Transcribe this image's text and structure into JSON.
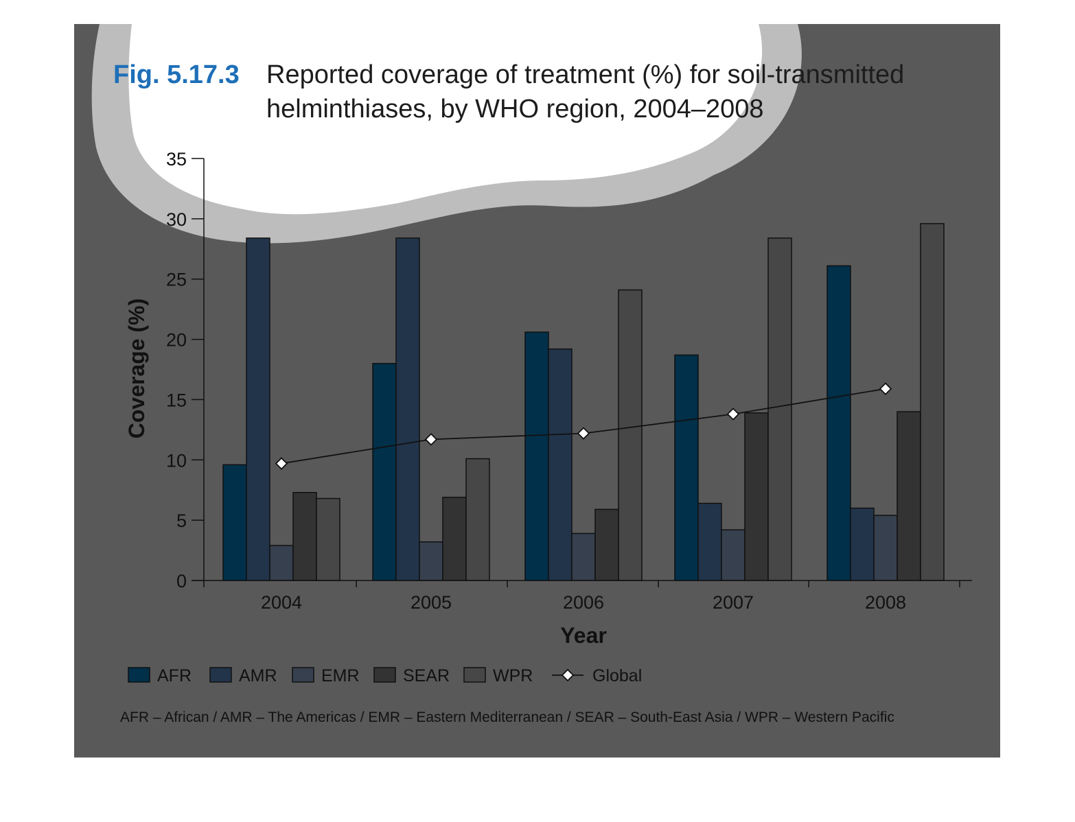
{
  "figure": {
    "number": "Fig. 5.17.3",
    "title_line1": "Reported coverage of treatment (%) for soil-transmitted",
    "title_line2": "helminthiases, by WHO region, 2004–2008",
    "footnote": "AFR – African / AMR – The Americas / EMR – Eastern Mediterranean / SEAR – South-East Asia / WPR – Western Pacific"
  },
  "colors": {
    "background_panel": "#595959",
    "cloud_border": "#bdbdbd",
    "cloud_fill": "#ffffff",
    "AFR": "#00304a",
    "AMR": "#22344a",
    "EMR": "#36404e",
    "SEAR": "#333333",
    "WPR": "#474747",
    "Global": "#111111"
  },
  "chart_data": {
    "type": "bar",
    "title": "Reported coverage of treatment (%) for soil-transmitted helminthiases, by WHO region, 2004–2008",
    "xlabel": "Year",
    "ylabel": "Coverage (%)",
    "ylim": [
      0,
      35
    ],
    "yticks": [
      0,
      5,
      10,
      15,
      20,
      25,
      30,
      35
    ],
    "categories": [
      "2004",
      "2005",
      "2006",
      "2007",
      "2008"
    ],
    "series": [
      {
        "name": "AFR",
        "values": [
          9.6,
          18.0,
          20.6,
          18.7,
          26.1
        ]
      },
      {
        "name": "AMR",
        "values": [
          28.4,
          28.4,
          19.2,
          6.4,
          6.0
        ]
      },
      {
        "name": "EMR",
        "values": [
          2.9,
          3.2,
          3.9,
          4.2,
          5.4
        ]
      },
      {
        "name": "SEAR",
        "values": [
          7.3,
          6.9,
          5.9,
          13.9,
          14.0
        ]
      },
      {
        "name": "WPR",
        "values": [
          6.8,
          10.1,
          24.1,
          28.4,
          29.6
        ]
      }
    ],
    "line_series": [
      {
        "name": "Global",
        "type": "line",
        "marker": "diamond",
        "values": [
          9.7,
          11.7,
          12.2,
          13.8,
          15.9
        ]
      }
    ],
    "legend": {
      "placement": "bottom",
      "items": [
        "AFR",
        "AMR",
        "EMR",
        "SEAR",
        "WPR",
        "Global"
      ]
    },
    "grid": false
  }
}
